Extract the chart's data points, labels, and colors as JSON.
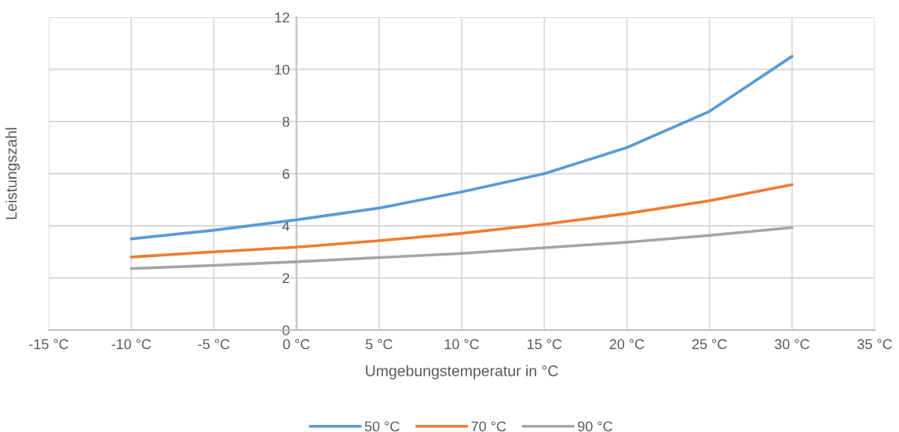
{
  "chart_data": {
    "type": "line",
    "xlabel": "Umgebungstemperatur in °C",
    "ylabel": "Leistungszahl",
    "x": [
      -10,
      -5,
      0,
      5,
      10,
      15,
      20,
      25,
      30
    ],
    "series": [
      {
        "name": "50 °C",
        "color": "#5b9bd5",
        "values": [
          3.5,
          3.83,
          4.23,
          4.68,
          5.3,
          6.0,
          7.0,
          8.39,
          10.5
        ]
      },
      {
        "name": "70 °C",
        "color": "#ed7d31",
        "values": [
          2.8,
          3.0,
          3.18,
          3.43,
          3.71,
          4.06,
          4.47,
          4.96,
          5.58
        ]
      },
      {
        "name": "90 °C",
        "color": "#a5a5a5",
        "values": [
          2.36,
          2.48,
          2.62,
          2.78,
          2.94,
          3.16,
          3.37,
          3.63,
          3.93
        ]
      }
    ],
    "xlim": [
      -15,
      35
    ],
    "xticks": [
      {
        "value": -15,
        "label": "-15 °C"
      },
      {
        "value": -10,
        "label": "-10 °C"
      },
      {
        "value": -5,
        "label": "-5 °C"
      },
      {
        "value": 0,
        "label": "0 °C"
      },
      {
        "value": 5,
        "label": "5 °C"
      },
      {
        "value": 10,
        "label": "10 °C"
      },
      {
        "value": 15,
        "label": "15 °C"
      },
      {
        "value": 20,
        "label": "20 °C"
      },
      {
        "value": 25,
        "label": "25 °C"
      },
      {
        "value": 30,
        "label": "30 °C"
      },
      {
        "value": 35,
        "label": "35 °C"
      }
    ],
    "ylim": [
      0,
      12
    ],
    "yticks": [
      0,
      2,
      4,
      6,
      8,
      10,
      12
    ],
    "grid": true,
    "legend": "bottom",
    "marker": "none",
    "line_style": "solid"
  }
}
